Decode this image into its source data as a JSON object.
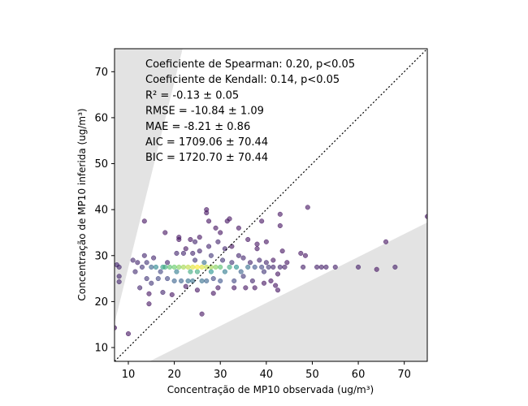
{
  "chart_data": {
    "type": "scatter",
    "title": "",
    "xlabel": "Concentração de MP10 observada (ug/m³)",
    "ylabel": "Concentração de MP10 inferida (ug/m³)",
    "xlim": [
      7,
      75
    ],
    "ylim": [
      7,
      75
    ],
    "xticks": [
      10,
      20,
      30,
      40,
      50,
      60,
      70
    ],
    "yticks": [
      10,
      20,
      30,
      40,
      50,
      60,
      70
    ],
    "reference_line": {
      "x": [
        7,
        75
      ],
      "y": [
        7,
        75
      ],
      "style": "dotted",
      "color": "#000000"
    },
    "shaded_regions": [
      {
        "color": "#e3e3e3",
        "polygon": [
          [
            7,
            15.3
          ],
          [
            7,
            75
          ],
          [
            21.8,
            75
          ]
        ]
      },
      {
        "color": "#e3e3e3",
        "polygon": [
          [
            14.6,
            7
          ],
          [
            75,
            37.2
          ],
          [
            75,
            7
          ]
        ]
      }
    ],
    "colormap": "viridis",
    "marker_color_low": "#440154",
    "marker_color_high": "#fde725",
    "annotations": [
      "Coeficiente de Spearman: 0.20, p<0.05",
      "Coeficiente de Kendall: 0.14, p<0.05",
      "R² = -0.13 ± 0.05",
      "RMSE = -10.84 ± 1.09",
      "MAE = -8.21 ± 0.86",
      "AIC = 1709.06 ± 70.44",
      "BIC = 1720.70 ± 70.44"
    ],
    "points": [
      [
        7,
        14.3,
        0.05
      ],
      [
        7.5,
        28,
        0.1
      ],
      [
        8,
        27.5,
        0.1
      ],
      [
        8,
        25.5,
        0.1
      ],
      [
        8,
        24.3,
        0.1
      ],
      [
        10,
        13,
        0.05
      ],
      [
        11,
        29,
        0.1
      ],
      [
        11.5,
        26.5,
        0.12
      ],
      [
        12,
        28.5,
        0.1
      ],
      [
        12.5,
        23,
        0.1
      ],
      [
        13,
        27.5,
        0.15
      ],
      [
        13.5,
        37.5,
        0.05
      ],
      [
        13.5,
        30,
        0.1
      ],
      [
        14,
        28.5,
        0.15
      ],
      [
        14,
        25,
        0.15
      ],
      [
        14.5,
        21.7,
        0.05
      ],
      [
        14.5,
        19.5,
        0.05
      ],
      [
        15,
        27.5,
        0.3
      ],
      [
        15,
        24,
        0.15
      ],
      [
        15.5,
        29.5,
        0.1
      ],
      [
        16,
        27.5,
        0.45
      ],
      [
        16.5,
        25,
        0.2
      ],
      [
        17,
        26.5,
        0.2
      ],
      [
        17.5,
        27.5,
        0.55
      ],
      [
        17.5,
        22,
        0.1
      ],
      [
        18,
        35,
        0.05
      ],
      [
        18,
        27.5,
        0.6
      ],
      [
        18.5,
        28.5,
        0.1
      ],
      [
        18.5,
        25,
        0.2
      ],
      [
        19,
        27.5,
        0.7
      ],
      [
        19.5,
        21.5,
        0.05
      ],
      [
        20,
        27.5,
        0.75
      ],
      [
        20,
        24.5,
        0.3
      ],
      [
        20.5,
        30.5,
        0.1
      ],
      [
        20.5,
        26.5,
        0.4
      ],
      [
        21,
        34,
        0.05
      ],
      [
        21,
        33.5,
        0.05
      ],
      [
        21,
        27.5,
        0.8
      ],
      [
        21.5,
        24.5,
        0.3
      ],
      [
        22,
        27.5,
        0.85
      ],
      [
        22,
        30.5,
        0.1
      ],
      [
        22.5,
        23.3,
        0.05
      ],
      [
        22.5,
        31.5,
        0.05
      ],
      [
        23,
        27.5,
        0.9
      ],
      [
        23,
        24.5,
        0.35
      ],
      [
        23.5,
        33.5,
        0.05
      ],
      [
        23.5,
        26.5,
        0.6
      ],
      [
        24,
        27.5,
        0.95
      ],
      [
        24,
        30.5,
        0.1
      ],
      [
        24,
        24.5,
        0.35
      ],
      [
        24.5,
        33,
        0.1
      ],
      [
        24.5,
        29,
        0.15
      ],
      [
        25,
        27.5,
        1.0
      ],
      [
        25,
        26.5,
        0.6
      ],
      [
        25,
        22.5,
        0.05
      ],
      [
        25.5,
        34,
        0.05
      ],
      [
        25.5,
        31,
        0.1
      ],
      [
        26,
        27.5,
        0.95
      ],
      [
        26,
        24.5,
        0.35
      ],
      [
        26,
        17.3,
        0.05
      ],
      [
        26.5,
        28.5,
        0.35
      ],
      [
        27,
        40,
        0.05
      ],
      [
        27,
        39.3,
        0.05
      ],
      [
        27,
        27.5,
        0.9
      ],
      [
        27,
        24.5,
        0.3
      ],
      [
        27.5,
        37.5,
        0.05
      ],
      [
        27.5,
        32,
        0.1
      ],
      [
        28,
        27.5,
        0.85
      ],
      [
        28,
        26.5,
        0.5
      ],
      [
        28,
        30,
        0.15
      ],
      [
        28.5,
        21.8,
        0.05
      ],
      [
        28.5,
        25,
        0.2
      ],
      [
        29,
        36,
        0.05
      ],
      [
        29,
        27.5,
        0.8
      ],
      [
        29.5,
        33,
        0.1
      ],
      [
        29.5,
        23,
        0.05
      ],
      [
        30,
        35,
        0.05
      ],
      [
        30,
        27.5,
        0.7
      ],
      [
        30,
        24.5,
        0.25
      ],
      [
        30.5,
        29,
        0.15
      ],
      [
        31,
        31.5,
        0.1
      ],
      [
        31,
        26.5,
        0.4
      ],
      [
        31.5,
        37.5,
        0.05
      ],
      [
        32,
        27.5,
        0.6
      ],
      [
        32,
        38,
        0.05
      ],
      [
        32.5,
        28.5,
        0.15
      ],
      [
        32.5,
        32,
        0.05
      ],
      [
        33,
        24.5,
        0.2
      ],
      [
        33,
        23,
        0.05
      ],
      [
        33.5,
        27.5,
        0.5
      ],
      [
        34,
        30,
        0.1
      ],
      [
        34,
        36,
        0.05
      ],
      [
        34.5,
        26.5,
        0.3
      ],
      [
        35,
        29.5,
        0.1
      ],
      [
        35,
        25.5,
        0.15
      ],
      [
        35.5,
        23,
        0.05
      ],
      [
        36,
        27.5,
        0.35
      ],
      [
        36,
        33.5,
        0.05
      ],
      [
        36.5,
        28.5,
        0.1
      ],
      [
        37,
        24.5,
        0.1
      ],
      [
        37.5,
        27.5,
        0.25
      ],
      [
        37.5,
        23,
        0.05
      ],
      [
        38,
        32.5,
        0.05
      ],
      [
        38,
        31.5,
        0.05
      ],
      [
        38.5,
        29,
        0.1
      ],
      [
        39,
        27.5,
        0.2
      ],
      [
        39,
        37.5,
        0.05
      ],
      [
        39.5,
        26.5,
        0.15
      ],
      [
        39.5,
        24,
        0.05
      ],
      [
        40,
        28.5,
        0.1
      ],
      [
        40,
        33,
        0.05
      ],
      [
        40.5,
        27.5,
        0.15
      ],
      [
        41,
        24.5,
        0.05
      ],
      [
        41.5,
        27.5,
        0.1
      ],
      [
        41.5,
        29,
        0.05
      ],
      [
        42,
        23.5,
        0.05
      ],
      [
        42.5,
        22.5,
        0.05
      ],
      [
        42.5,
        26,
        0.05
      ],
      [
        43,
        27.5,
        0.1
      ],
      [
        43,
        39,
        0.05
      ],
      [
        43,
        36.5,
        0.05
      ],
      [
        43.5,
        31,
        0.05
      ],
      [
        44,
        27.5,
        0.08
      ],
      [
        44.5,
        28.5,
        0.05
      ],
      [
        47.5,
        30.5,
        0.05
      ],
      [
        48,
        27.5,
        0.08
      ],
      [
        48.5,
        30,
        0.05
      ],
      [
        49,
        40.5,
        0.05
      ],
      [
        51,
        27.5,
        0.08
      ],
      [
        52,
        27.5,
        0.08
      ],
      [
        53,
        27.5,
        0.08
      ],
      [
        55,
        27.5,
        0.08
      ],
      [
        60,
        27.5,
        0.08
      ],
      [
        64,
        27,
        0.05
      ],
      [
        66,
        33,
        0.05
      ],
      [
        68,
        27.5,
        0.08
      ],
      [
        75,
        38.5,
        0.05
      ]
    ]
  }
}
